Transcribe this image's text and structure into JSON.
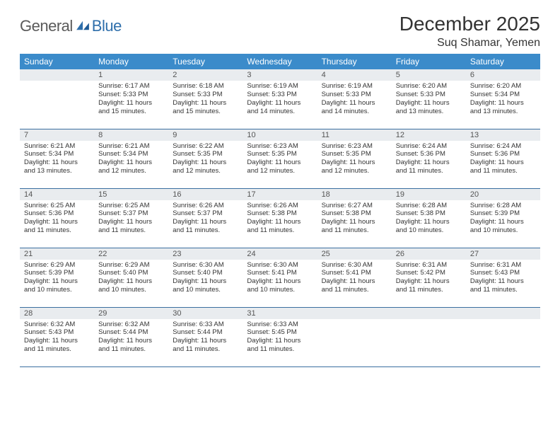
{
  "brand": {
    "name": "General",
    "accent": "Blue"
  },
  "title": "December 2025",
  "location": "Suq Shamar, Yemen",
  "colors": {
    "header_bg": "#3b8bca",
    "header_text": "#ffffff",
    "daynum_bg": "#e9ecef",
    "cell_border": "#3b6fa0",
    "body_text": "#333333",
    "logo_gray": "#5a5a5a",
    "logo_blue": "#2f6fab"
  },
  "weekdays": [
    "Sunday",
    "Monday",
    "Tuesday",
    "Wednesday",
    "Thursday",
    "Friday",
    "Saturday"
  ],
  "weeks": [
    [
      null,
      {
        "n": "1",
        "sr": "6:17 AM",
        "ss": "5:33 PM",
        "dl": "11 hours and 15 minutes."
      },
      {
        "n": "2",
        "sr": "6:18 AM",
        "ss": "5:33 PM",
        "dl": "11 hours and 15 minutes."
      },
      {
        "n": "3",
        "sr": "6:19 AM",
        "ss": "5:33 PM",
        "dl": "11 hours and 14 minutes."
      },
      {
        "n": "4",
        "sr": "6:19 AM",
        "ss": "5:33 PM",
        "dl": "11 hours and 14 minutes."
      },
      {
        "n": "5",
        "sr": "6:20 AM",
        "ss": "5:33 PM",
        "dl": "11 hours and 13 minutes."
      },
      {
        "n": "6",
        "sr": "6:20 AM",
        "ss": "5:34 PM",
        "dl": "11 hours and 13 minutes."
      }
    ],
    [
      {
        "n": "7",
        "sr": "6:21 AM",
        "ss": "5:34 PM",
        "dl": "11 hours and 13 minutes."
      },
      {
        "n": "8",
        "sr": "6:21 AM",
        "ss": "5:34 PM",
        "dl": "11 hours and 12 minutes."
      },
      {
        "n": "9",
        "sr": "6:22 AM",
        "ss": "5:35 PM",
        "dl": "11 hours and 12 minutes."
      },
      {
        "n": "10",
        "sr": "6:23 AM",
        "ss": "5:35 PM",
        "dl": "11 hours and 12 minutes."
      },
      {
        "n": "11",
        "sr": "6:23 AM",
        "ss": "5:35 PM",
        "dl": "11 hours and 12 minutes."
      },
      {
        "n": "12",
        "sr": "6:24 AM",
        "ss": "5:36 PM",
        "dl": "11 hours and 11 minutes."
      },
      {
        "n": "13",
        "sr": "6:24 AM",
        "ss": "5:36 PM",
        "dl": "11 hours and 11 minutes."
      }
    ],
    [
      {
        "n": "14",
        "sr": "6:25 AM",
        "ss": "5:36 PM",
        "dl": "11 hours and 11 minutes."
      },
      {
        "n": "15",
        "sr": "6:25 AM",
        "ss": "5:37 PM",
        "dl": "11 hours and 11 minutes."
      },
      {
        "n": "16",
        "sr": "6:26 AM",
        "ss": "5:37 PM",
        "dl": "11 hours and 11 minutes."
      },
      {
        "n": "17",
        "sr": "6:26 AM",
        "ss": "5:38 PM",
        "dl": "11 hours and 11 minutes."
      },
      {
        "n": "18",
        "sr": "6:27 AM",
        "ss": "5:38 PM",
        "dl": "11 hours and 11 minutes."
      },
      {
        "n": "19",
        "sr": "6:28 AM",
        "ss": "5:38 PM",
        "dl": "11 hours and 10 minutes."
      },
      {
        "n": "20",
        "sr": "6:28 AM",
        "ss": "5:39 PM",
        "dl": "11 hours and 10 minutes."
      }
    ],
    [
      {
        "n": "21",
        "sr": "6:29 AM",
        "ss": "5:39 PM",
        "dl": "11 hours and 10 minutes."
      },
      {
        "n": "22",
        "sr": "6:29 AM",
        "ss": "5:40 PM",
        "dl": "11 hours and 10 minutes."
      },
      {
        "n": "23",
        "sr": "6:30 AM",
        "ss": "5:40 PM",
        "dl": "11 hours and 10 minutes."
      },
      {
        "n": "24",
        "sr": "6:30 AM",
        "ss": "5:41 PM",
        "dl": "11 hours and 10 minutes."
      },
      {
        "n": "25",
        "sr": "6:30 AM",
        "ss": "5:41 PM",
        "dl": "11 hours and 11 minutes."
      },
      {
        "n": "26",
        "sr": "6:31 AM",
        "ss": "5:42 PM",
        "dl": "11 hours and 11 minutes."
      },
      {
        "n": "27",
        "sr": "6:31 AM",
        "ss": "5:43 PM",
        "dl": "11 hours and 11 minutes."
      }
    ],
    [
      {
        "n": "28",
        "sr": "6:32 AM",
        "ss": "5:43 PM",
        "dl": "11 hours and 11 minutes."
      },
      {
        "n": "29",
        "sr": "6:32 AM",
        "ss": "5:44 PM",
        "dl": "11 hours and 11 minutes."
      },
      {
        "n": "30",
        "sr": "6:33 AM",
        "ss": "5:44 PM",
        "dl": "11 hours and 11 minutes."
      },
      {
        "n": "31",
        "sr": "6:33 AM",
        "ss": "5:45 PM",
        "dl": "11 hours and 11 minutes."
      },
      null,
      null,
      null
    ]
  ],
  "labels": {
    "sunrise": "Sunrise:",
    "sunset": "Sunset:",
    "daylight": "Daylight:"
  }
}
